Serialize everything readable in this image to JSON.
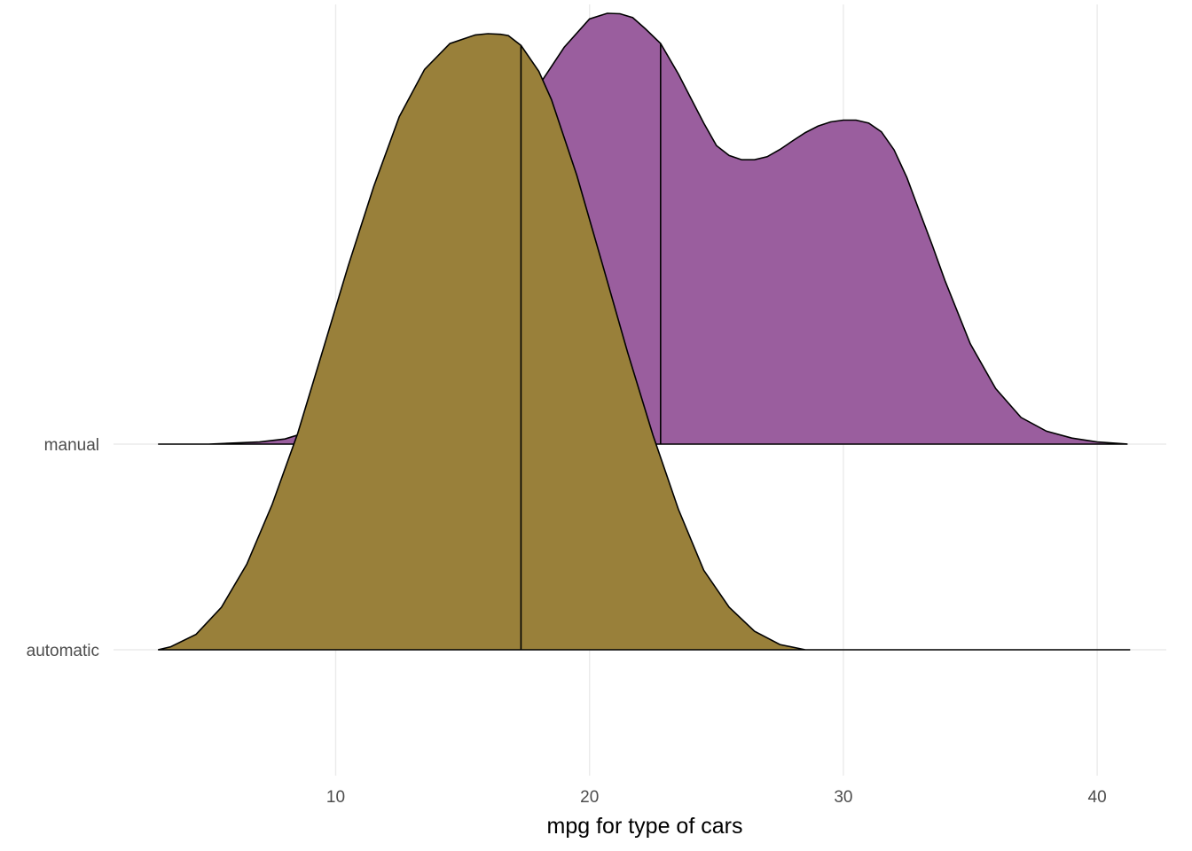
{
  "chart_data": {
    "type": "area",
    "subtype": "ridgeline-density",
    "xlabel": "mpg for type of cars",
    "ylabel": "",
    "xlim": [
      0.5,
      42.5
    ],
    "x_ticks": [
      10,
      20,
      30,
      40
    ],
    "x_tick_labels": [
      "10",
      "20",
      "30",
      "40"
    ],
    "grid": true,
    "legend": "none",
    "categories": [
      "automatic",
      "manual"
    ],
    "series": [
      {
        "name": "automatic",
        "color": "#99803a",
        "median": 17.3,
        "x": [
          3.0,
          3.5,
          4.5,
          5.5,
          6.5,
          7.5,
          8.5,
          9.5,
          10.5,
          11.5,
          12.5,
          13.5,
          14.5,
          15.5,
          16.0,
          16.5,
          16.8,
          17.3,
          18.0,
          18.5,
          19.5,
          20.5,
          21.5,
          22.5,
          23.5,
          24.5,
          25.5,
          26.5,
          27.5,
          28.5,
          29.5,
          30.5,
          32.0,
          34.0,
          36.0,
          38.0,
          41.3
        ],
        "y": [
          0.0,
          0.0049,
          0.025,
          0.069,
          0.139,
          0.236,
          0.351,
          0.487,
          0.624,
          0.752,
          0.865,
          0.942,
          0.984,
          0.998,
          1.0,
          0.999,
          0.997,
          0.981,
          0.939,
          0.893,
          0.77,
          0.627,
          0.483,
          0.348,
          0.228,
          0.129,
          0.069,
          0.03,
          0.0085,
          0.0,
          0.0,
          0.0,
          0.0,
          0.0,
          0.0,
          0.0,
          0.0
        ]
      },
      {
        "name": "manual",
        "color": "#9a5e9e",
        "median": 22.8,
        "x": [
          3.0,
          5.0,
          7.0,
          8.0,
          9.0,
          10.0,
          11.0,
          12.0,
          13.0,
          14.0,
          15.0,
          16.0,
          17.0,
          18.0,
          19.0,
          20.0,
          20.7,
          21.2,
          21.7,
          22.2,
          22.8,
          23.5,
          24.0,
          24.5,
          25.0,
          25.5,
          26.0,
          26.5,
          27.0,
          27.5,
          28.0,
          28.5,
          29.0,
          29.5,
          30.0,
          30.5,
          31.0,
          31.5,
          32.0,
          32.5,
          33.0,
          33.5,
          34.0,
          35.0,
          36.0,
          37.0,
          38.0,
          39.0,
          40.0,
          41.2
        ],
        "y": [
          0.0,
          0.0,
          0.0049,
          0.012,
          0.03,
          0.073,
          0.134,
          0.215,
          0.305,
          0.405,
          0.518,
          0.632,
          0.737,
          0.832,
          0.921,
          0.987,
          1.0,
          0.999,
          0.99,
          0.964,
          0.93,
          0.859,
          0.802,
          0.745,
          0.693,
          0.67,
          0.66,
          0.66,
          0.667,
          0.684,
          0.704,
          0.723,
          0.738,
          0.748,
          0.752,
          0.752,
          0.745,
          0.725,
          0.683,
          0.619,
          0.54,
          0.462,
          0.38,
          0.233,
          0.129,
          0.062,
          0.03,
          0.014,
          0.0049,
          0.0
        ]
      }
    ]
  }
}
